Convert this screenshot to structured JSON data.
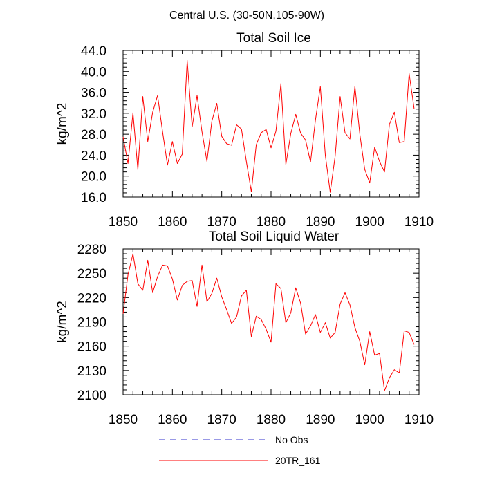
{
  "figure_title": "Central U.S. (30-50N,105-90W)",
  "legend": [
    {
      "label": "No Obs",
      "color": "#3333cc",
      "dashed": true
    },
    {
      "label": "20TR_161",
      "color": "#ff0000",
      "dashed": false
    }
  ],
  "chart_data": [
    {
      "type": "line",
      "title": "Total Soil Ice",
      "xlabel": "",
      "ylabel": "kg/m^2",
      "xlim": [
        1850,
        1910
      ],
      "ylim": [
        16,
        44
      ],
      "xticks": [
        1850,
        1860,
        1870,
        1880,
        1890,
        1900,
        1910
      ],
      "yticks": [
        16,
        20,
        24,
        28,
        32,
        36,
        40,
        44
      ],
      "ytick_labels": [
        "16.0",
        "20.0",
        "24.0",
        "28.0",
        "32.0",
        "36.0",
        "40.0",
        "44.0"
      ],
      "series": [
        {
          "name": "20TR_161",
          "color": "#ff0000",
          "x": [
            1850,
            1851,
            1852,
            1853,
            1854,
            1855,
            1856,
            1857,
            1858,
            1859,
            1860,
            1861,
            1862,
            1863,
            1864,
            1865,
            1866,
            1867,
            1868,
            1869,
            1870,
            1871,
            1872,
            1873,
            1874,
            1875,
            1876,
            1877,
            1878,
            1879,
            1880,
            1881,
            1882,
            1883,
            1884,
            1885,
            1886,
            1887,
            1888,
            1889,
            1890,
            1891,
            1892,
            1893,
            1894,
            1895,
            1896,
            1897,
            1898,
            1899,
            1900,
            1901,
            1902,
            1903,
            1904,
            1905,
            1906,
            1907,
            1908,
            1909
          ],
          "values": [
            27.5,
            22.4,
            32.1,
            21.2,
            35.2,
            26.6,
            32.2,
            35.4,
            28.5,
            22.1,
            26.6,
            22.4,
            24.2,
            42.1,
            29.4,
            35.4,
            28.5,
            22.8,
            30.5,
            33.9,
            27.6,
            26.2,
            25.9,
            29.8,
            29.0,
            22.8,
            17.0,
            26.0,
            28.3,
            28.9,
            25.4,
            28.6,
            37.7,
            22.2,
            28.1,
            31.8,
            28.2,
            26.9,
            22.7,
            30.7,
            37.1,
            24.0,
            16.9,
            23.8,
            35.2,
            28.3,
            27.1,
            37.2,
            28.0,
            21.3,
            18.7,
            25.5,
            22.8,
            20.8,
            29.9,
            32.2,
            26.4,
            26.6,
            39.6,
            32.9
          ]
        }
      ]
    },
    {
      "type": "line",
      "title": "Total Soil Liquid Water",
      "xlabel": "",
      "ylabel": "kg/m^2",
      "xlim": [
        1850,
        1910
      ],
      "ylim": [
        2100,
        2280
      ],
      "xticks": [
        1850,
        1860,
        1870,
        1880,
        1890,
        1900,
        1910
      ],
      "yticks": [
        2100,
        2130,
        2160,
        2190,
        2220,
        2250,
        2280
      ],
      "ytick_labels": [
        "2100",
        "2130",
        "2160",
        "2190",
        "2220",
        "2250",
        "2280"
      ],
      "series": [
        {
          "name": "20TR_161",
          "color": "#ff0000",
          "x": [
            1850,
            1851,
            1852,
            1853,
            1854,
            1855,
            1856,
            1857,
            1858,
            1859,
            1860,
            1861,
            1862,
            1863,
            1864,
            1865,
            1866,
            1867,
            1868,
            1869,
            1870,
            1871,
            1872,
            1873,
            1874,
            1875,
            1876,
            1877,
            1878,
            1879,
            1880,
            1881,
            1882,
            1883,
            1884,
            1885,
            1886,
            1887,
            1888,
            1889,
            1890,
            1891,
            1892,
            1893,
            1894,
            1895,
            1896,
            1897,
            1898,
            1899,
            1900,
            1901,
            1902,
            1903,
            1904,
            1905,
            1906,
            1907,
            1908,
            1909
          ],
          "values": [
            2200,
            2248,
            2274,
            2237,
            2229,
            2266,
            2226,
            2246,
            2260,
            2259,
            2243,
            2217,
            2235,
            2240,
            2241,
            2209,
            2260,
            2215,
            2225,
            2244,
            2221,
            2205,
            2188,
            2196,
            2222,
            2229,
            2172,
            2197,
            2193,
            2181,
            2165,
            2237,
            2231,
            2189,
            2201,
            2232,
            2213,
            2175,
            2185,
            2199,
            2177,
            2189,
            2170,
            2177,
            2212,
            2226,
            2211,
            2183,
            2166,
            2137,
            2178,
            2149,
            2151,
            2105,
            2121,
            2131,
            2127,
            2179,
            2177,
            2162
          ]
        }
      ]
    }
  ]
}
